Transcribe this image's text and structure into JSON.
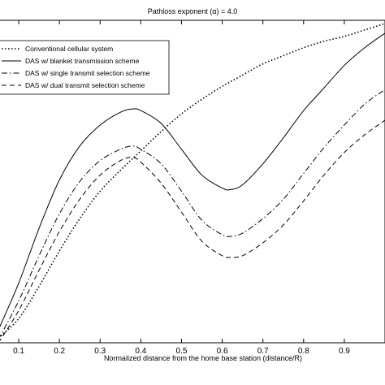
{
  "chart_data": {
    "type": "line",
    "title": "Pathloss exponent (α) = 4.0",
    "xlabel": "Normalized distance from the home base station (distance/R)",
    "ylabel": "",
    "xlim": [
      0.05,
      1.0
    ],
    "ylim": [
      0,
      1
    ],
    "x_ticks": [
      "0.1",
      "0.2",
      "0.3",
      "0.4",
      "0.5",
      "0.6",
      "0.7",
      "0.8",
      "0.9"
    ],
    "grid": false,
    "legend_position": "top-left",
    "series": [
      {
        "name": "Conventional cellular system",
        "style": "dotted",
        "points": [
          [
            0.05,
            0.015
          ],
          [
            0.1,
            0.075
          ],
          [
            0.15,
            0.175
          ],
          [
            0.2,
            0.285
          ],
          [
            0.25,
            0.385
          ],
          [
            0.3,
            0.47
          ],
          [
            0.35,
            0.535
          ],
          [
            0.4,
            0.595
          ],
          [
            0.45,
            0.655
          ],
          [
            0.5,
            0.71
          ],
          [
            0.55,
            0.755
          ],
          [
            0.6,
            0.795
          ],
          [
            0.65,
            0.83
          ],
          [
            0.7,
            0.865
          ],
          [
            0.75,
            0.89
          ],
          [
            0.8,
            0.915
          ],
          [
            0.85,
            0.935
          ],
          [
            0.9,
            0.95
          ],
          [
            0.95,
            0.97
          ],
          [
            1.0,
            0.99
          ]
        ]
      },
      {
        "name": "DAS w/ blanket transmission scheme",
        "style": "solid",
        "points": [
          [
            0.05,
            0.04
          ],
          [
            0.1,
            0.185
          ],
          [
            0.15,
            0.355
          ],
          [
            0.2,
            0.505
          ],
          [
            0.25,
            0.61
          ],
          [
            0.3,
            0.675
          ],
          [
            0.35,
            0.715
          ],
          [
            0.38,
            0.725
          ],
          [
            0.4,
            0.72
          ],
          [
            0.45,
            0.68
          ],
          [
            0.5,
            0.6
          ],
          [
            0.55,
            0.52
          ],
          [
            0.6,
            0.48
          ],
          [
            0.62,
            0.475
          ],
          [
            0.65,
            0.49
          ],
          [
            0.7,
            0.555
          ],
          [
            0.75,
            0.635
          ],
          [
            0.8,
            0.72
          ],
          [
            0.85,
            0.79
          ],
          [
            0.9,
            0.86
          ],
          [
            0.95,
            0.915
          ],
          [
            1.0,
            0.96
          ]
        ]
      },
      {
        "name": "DAS w/ single transmit selection scheme",
        "style": "dashdot",
        "points": [
          [
            0.05,
            0.01
          ],
          [
            0.1,
            0.13
          ],
          [
            0.15,
            0.27
          ],
          [
            0.2,
            0.4
          ],
          [
            0.25,
            0.5
          ],
          [
            0.3,
            0.565
          ],
          [
            0.35,
            0.6
          ],
          [
            0.38,
            0.61
          ],
          [
            0.4,
            0.6
          ],
          [
            0.45,
            0.555
          ],
          [
            0.5,
            0.47
          ],
          [
            0.55,
            0.38
          ],
          [
            0.6,
            0.335
          ],
          [
            0.62,
            0.33
          ],
          [
            0.65,
            0.34
          ],
          [
            0.7,
            0.385
          ],
          [
            0.75,
            0.445
          ],
          [
            0.8,
            0.525
          ],
          [
            0.85,
            0.605
          ],
          [
            0.9,
            0.675
          ],
          [
            0.95,
            0.74
          ],
          [
            1.0,
            0.785
          ]
        ]
      },
      {
        "name": "DAS w/ dual transmit selection scheme",
        "style": "dashed",
        "points": [
          [
            0.05,
            0.0
          ],
          [
            0.1,
            0.1
          ],
          [
            0.15,
            0.225
          ],
          [
            0.2,
            0.345
          ],
          [
            0.25,
            0.445
          ],
          [
            0.3,
            0.52
          ],
          [
            0.35,
            0.565
          ],
          [
            0.38,
            0.575
          ],
          [
            0.4,
            0.56
          ],
          [
            0.45,
            0.495
          ],
          [
            0.5,
            0.405
          ],
          [
            0.55,
            0.315
          ],
          [
            0.6,
            0.27
          ],
          [
            0.62,
            0.265
          ],
          [
            0.65,
            0.27
          ],
          [
            0.7,
            0.31
          ],
          [
            0.75,
            0.365
          ],
          [
            0.8,
            0.44
          ],
          [
            0.85,
            0.52
          ],
          [
            0.9,
            0.59
          ],
          [
            0.95,
            0.645
          ],
          [
            1.0,
            0.69
          ]
        ]
      }
    ]
  }
}
